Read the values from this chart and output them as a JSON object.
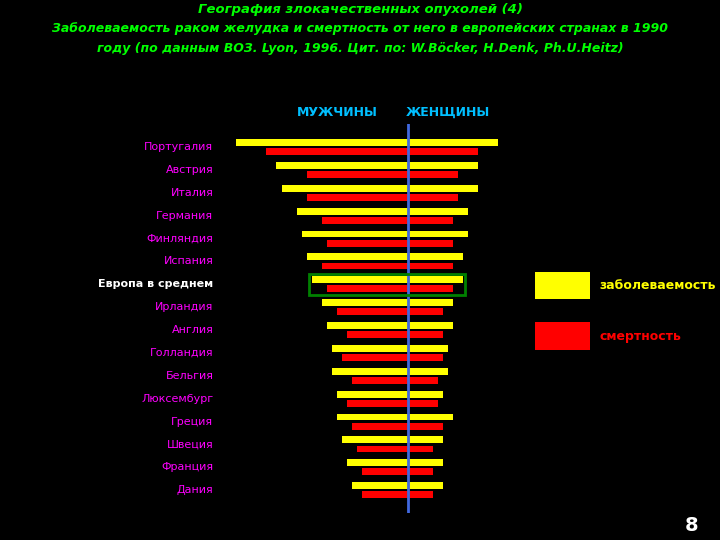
{
  "title_line1": "География злокачественных опухолей (4)",
  "title_line2": "Заболеваемость раком желудка и смертность от него в европейских странах в 1990",
  "title_line3": "году (по данным ВОЗ. Lyon, 1996. Цит. по: W.Böcker, H.Denk, Ph.U.Heitz)",
  "title_color": "#00ff00",
  "background_color": "#000000",
  "label_color": "#ff00ff",
  "header_men": "МУЖЧИНЫ",
  "header_women": "ЖЕНЩИНЫ",
  "header_color": "#00bfff",
  "incidence_color": "#ffff00",
  "mortality_color": "#ff0000",
  "legend_incidence": "заболеваемость",
  "legend_mortality": "смертность",
  "legend_incidence_color": "#ffff00",
  "legend_mortality_color": "#ff0000",
  "highlight_country": "Европа в среднем",
  "highlight_box_color": "#008000",
  "highlight_label_color": "#ffffff",
  "page_number": "8",
  "center_line_color": "#4169e1",
  "countries": [
    "Португалия",
    "Австрия",
    "Италия",
    "Германия",
    "Финляндия",
    "Испания",
    "Европа в среднем",
    "Ирландия",
    "Англия",
    "Голландия",
    "Бельгия",
    "Люксембург",
    "Греция",
    "Швеция",
    "Франция",
    "Дания"
  ],
  "men_incidence": [
    34,
    26,
    25,
    22,
    21,
    20,
    19,
    17,
    16,
    15,
    15,
    14,
    14,
    13,
    12,
    11
  ],
  "men_mortality": [
    28,
    20,
    20,
    17,
    16,
    17,
    16,
    14,
    12,
    13,
    11,
    12,
    11,
    10,
    9,
    9
  ],
  "women_incidence": [
    18,
    14,
    14,
    12,
    12,
    11,
    11,
    9,
    9,
    8,
    8,
    7,
    9,
    7,
    7,
    7
  ],
  "women_mortality": [
    14,
    10,
    10,
    9,
    9,
    9,
    9,
    7,
    7,
    7,
    6,
    6,
    7,
    5,
    5,
    5
  ]
}
